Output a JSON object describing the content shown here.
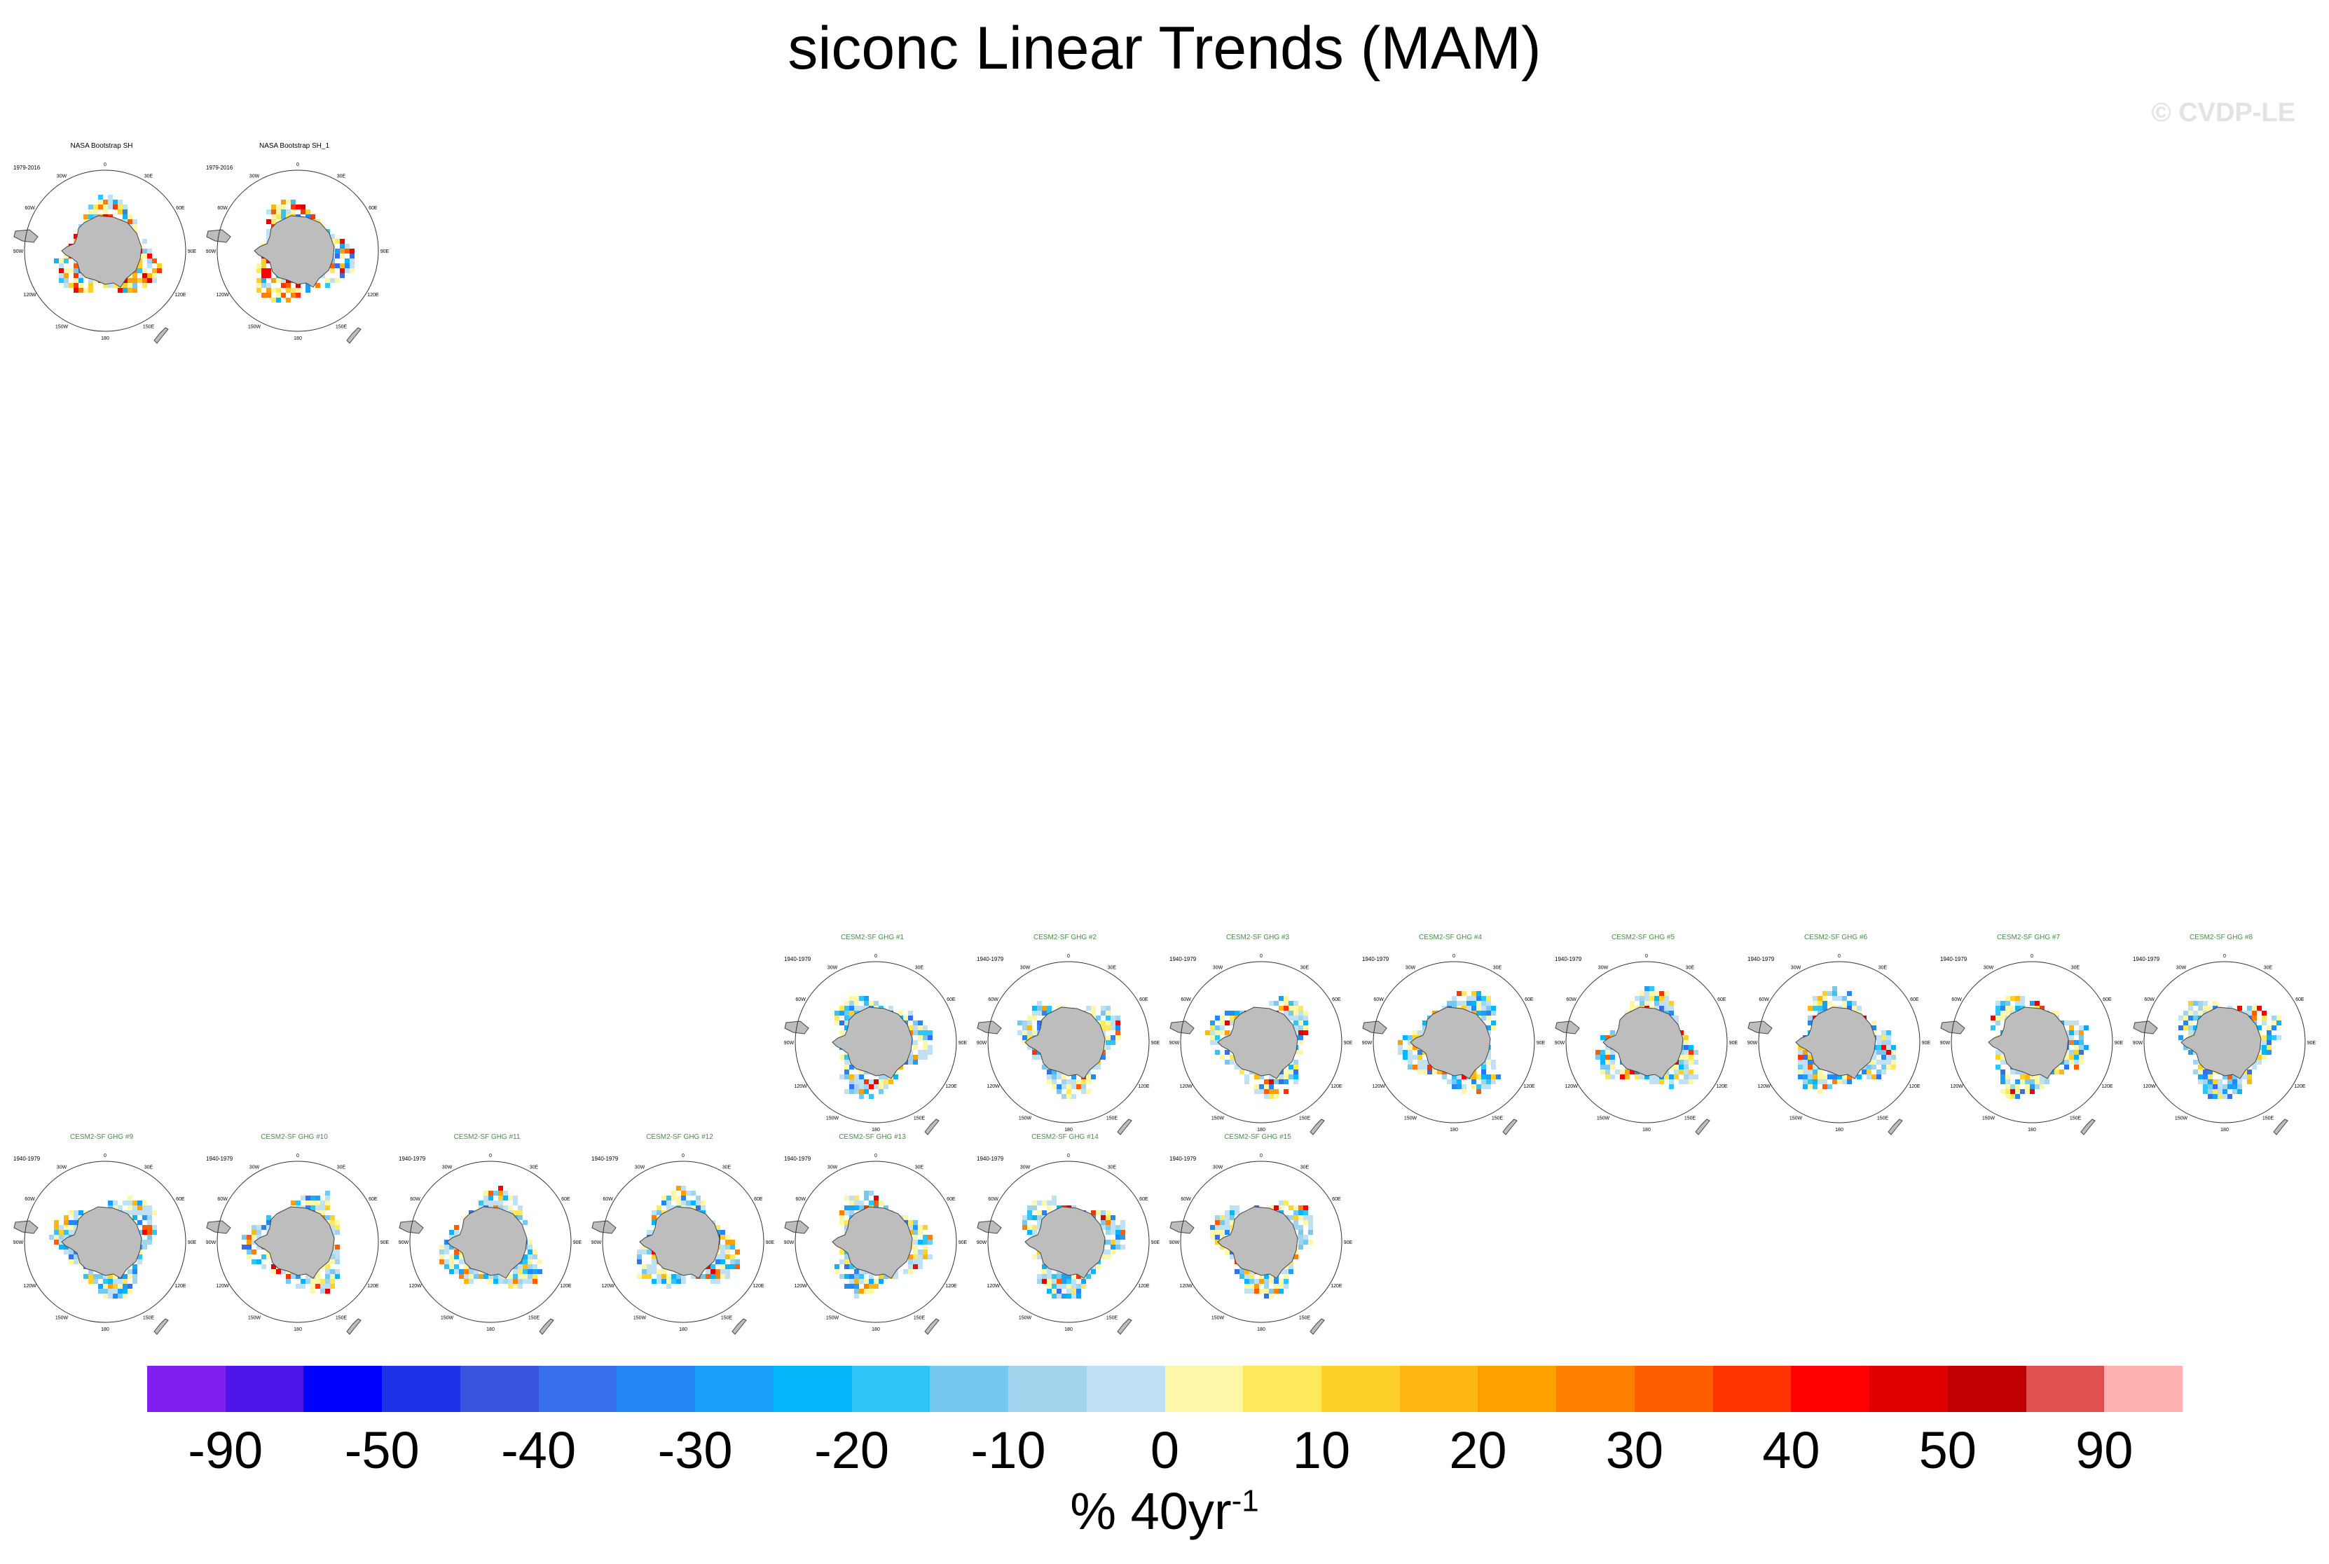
{
  "title": "siconc Linear Trends (MAM)",
  "watermark": "© CVDP-LE",
  "panels": [
    {
      "name": "NASA Bootstrap SH",
      "years": "1979-2016",
      "kind": "obs"
    },
    {
      "name": "NASA Bootstrap SH_1",
      "years": "1979-2016",
      "kind": "obs"
    },
    {
      "name": "CESM2-SF GHG #1",
      "years": "1940-1979",
      "kind": "mod"
    },
    {
      "name": "CESM2-SF GHG #2",
      "years": "1940-1979",
      "kind": "mod"
    },
    {
      "name": "CESM2-SF GHG #3",
      "years": "1940-1979",
      "kind": "mod"
    },
    {
      "name": "CESM2-SF GHG #4",
      "years": "1940-1979",
      "kind": "mod"
    },
    {
      "name": "CESM2-SF GHG #5",
      "years": "1940-1979",
      "kind": "mod"
    },
    {
      "name": "CESM2-SF GHG #6",
      "years": "1940-1979",
      "kind": "mod"
    },
    {
      "name": "CESM2-SF GHG #7",
      "years": "1940-1979",
      "kind": "mod"
    },
    {
      "name": "CESM2-SF GHG #8",
      "years": "1940-1979",
      "kind": "mod"
    },
    {
      "name": "CESM2-SF GHG #9",
      "years": "1940-1979",
      "kind": "mod"
    },
    {
      "name": "CESM2-SF GHG #10",
      "years": "1940-1979",
      "kind": "mod"
    },
    {
      "name": "CESM2-SF GHG #11",
      "years": "1940-1979",
      "kind": "mod"
    },
    {
      "name": "CESM2-SF GHG #12",
      "years": "1940-1979",
      "kind": "mod"
    },
    {
      "name": "CESM2-SF GHG #13",
      "years": "1940-1979",
      "kind": "mod"
    },
    {
      "name": "CESM2-SF GHG #14",
      "years": "1940-1979",
      "kind": "mod"
    },
    {
      "name": "CESM2-SF GHG #15",
      "years": "1940-1979",
      "kind": "mod"
    }
  ],
  "lon_labels": [
    "0",
    "30E",
    "60E",
    "90E",
    "120E",
    "150E",
    "180",
    "150W",
    "120W",
    "90W",
    "60W",
    "30W"
  ],
  "colorbar": {
    "colors": [
      "#7f1ff0",
      "#4f14e8",
      "#0000ff",
      "#1f32e8",
      "#3a55dd",
      "#3570ea",
      "#2487f5",
      "#1aa0f8",
      "#05b7fa",
      "#30c4f7",
      "#75c8f0",
      "#a3d4ee",
      "#bfe1f3",
      "#fff7a8",
      "#ffe85a",
      "#ffd02a",
      "#ffb812",
      "#ffa000",
      "#ff8000",
      "#ff5e00",
      "#ff3400",
      "#ff0000",
      "#e00000",
      "#c00000",
      "#e05050",
      "#ffb0b0"
    ],
    "labels": [
      "-90",
      "-50",
      "-40",
      "-30",
      "-20",
      "-10",
      "0",
      "10",
      "20",
      "30",
      "40",
      "50",
      "90"
    ],
    "units_main": "% 40yr",
    "units_sup": "-1"
  }
}
